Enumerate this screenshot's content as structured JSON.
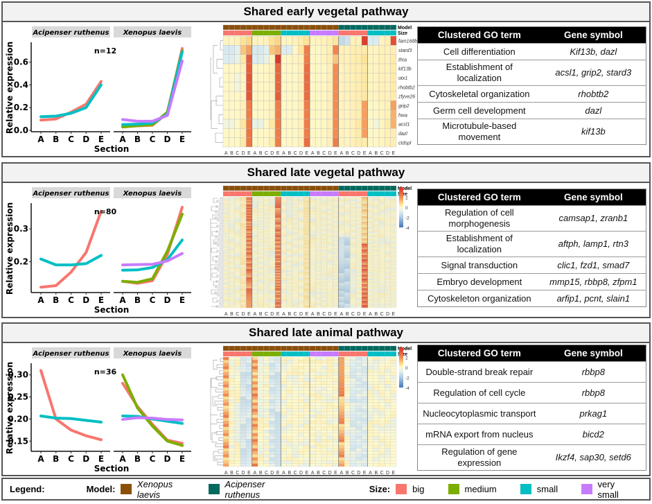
{
  "legend": {
    "title": "Legend:",
    "model_label": "Model:",
    "models": [
      {
        "name": "Xenopus laevis",
        "color": "#8B4F0A"
      },
      {
        "name": "Acipenser ruthenus",
        "color": "#006A5E"
      }
    ],
    "size_label": "Size:",
    "sizes": [
      {
        "name": "big",
        "color": "#F8766D"
      },
      {
        "name": "medium",
        "color": "#7CAE00"
      },
      {
        "name": "small",
        "color": "#00BFC4"
      },
      {
        "name": "very small",
        "color": "#C77CFF"
      }
    ]
  },
  "table_headers": {
    "go": "Clustered GO term",
    "gene": "Gene symbol"
  },
  "chart_data": [
    {
      "type": "line",
      "panel": "Shared early vegetal pathway",
      "title": "Shared early vegetal pathway",
      "n_label": "n=12",
      "facets": [
        "Acipenser ruthenus",
        "Xenopus laevis"
      ],
      "x": [
        "A",
        "B",
        "C",
        "D",
        "E"
      ],
      "xlabel": "Section",
      "ylabel": "Relative expression",
      "ylim": [
        0,
        0.75
      ],
      "yticks": [
        0.0,
        0.2,
        0.4,
        0.6
      ],
      "ytick_labels": [
        "0.0",
        "0.2",
        "0.4",
        "0.6"
      ],
      "series": {
        "Acipenser ruthenus": [
          {
            "name": "big",
            "values": [
              0.09,
              0.1,
              0.16,
              0.23,
              0.43
            ]
          },
          {
            "name": "small",
            "values": [
              0.12,
              0.125,
              0.15,
              0.2,
              0.4
            ]
          }
        ],
        "Xenopus laevis": [
          {
            "name": "big",
            "values": [
              0.03,
              0.04,
              0.045,
              0.15,
              0.72
            ]
          },
          {
            "name": "medium",
            "values": [
              0.03,
              0.04,
              0.05,
              0.16,
              0.7
            ]
          },
          {
            "name": "small",
            "values": [
              0.05,
              0.055,
              0.065,
              0.14,
              0.69
            ]
          },
          {
            "name": "very small",
            "values": [
              0.095,
              0.08,
              0.08,
              0.13,
              0.61
            ]
          }
        ]
      },
      "heatmap": {
        "scale_ticks": [
          "3",
          "2",
          "1",
          "0",
          "-1",
          "-2",
          "-3"
        ],
        "vmin": -3,
        "vmax": 3,
        "annotation_labels": [
          "Model",
          "Size"
        ],
        "column_groups": [
          {
            "model": "Xenopus laevis",
            "size": "big"
          },
          {
            "model": "Xenopus laevis",
            "size": "medium"
          },
          {
            "model": "Xenopus laevis",
            "size": "small"
          },
          {
            "model": "Xenopus laevis",
            "size": "very small"
          },
          {
            "model": "Acipenser ruthenus",
            "size": "big"
          },
          {
            "model": "Acipenser ruthenus",
            "size": "small"
          }
        ],
        "col_labels": [
          "A",
          "B",
          "C",
          "D",
          "E"
        ],
        "row_labels": [
          "fam168b",
          "stard3",
          "thra",
          "kif13b",
          "otx1",
          "rhobtb2",
          "zfyve26",
          "grip2",
          "hwa",
          "acsl1",
          "dazl",
          "ctdspl"
        ],
        "values": [
          [
            0.2,
            0.2,
            0.3,
            0.8,
            1.0,
            0.2,
            0.2,
            0.3,
            0.8,
            1.0,
            0.2,
            0.2,
            0.3,
            0.5,
            0.8,
            0.2,
            0.2,
            0.3,
            0.4,
            0.7,
            -1.0,
            -0.8,
            0.3,
            0.3,
            2.8,
            -0.5,
            -0.5,
            0.2,
            0.4,
            2.6
          ],
          [
            -0.6,
            -0.6,
            -0.4,
            1.2,
            1.6,
            -0.6,
            -0.6,
            -0.4,
            1.2,
            1.4,
            -0.5,
            -0.5,
            0.1,
            0.7,
            2.0,
            0.1,
            0.1,
            0.2,
            0.4,
            1.9,
            0.3,
            0.3,
            0.4,
            0.4,
            0.5,
            0.2,
            0.2,
            0.3,
            0.3,
            0.4
          ],
          [
            -0.5,
            -0.5,
            -0.3,
            0.6,
            2.4,
            -0.5,
            -0.5,
            -0.3,
            0.2,
            2.9,
            0.1,
            0.1,
            0.2,
            0.3,
            2.0,
            0.1,
            0.1,
            0.2,
            0.4,
            1.2,
            0.3,
            0.3,
            0.4,
            0.5,
            0.8,
            0.2,
            0.2,
            0.3,
            0.3,
            0.5
          ],
          [
            0.1,
            0.1,
            0.1,
            0.3,
            2.4,
            0.1,
            0.1,
            0.1,
            0.3,
            2.3,
            0.1,
            0.1,
            0.1,
            0.3,
            2.2,
            0.1,
            0.1,
            0.1,
            0.3,
            1.8,
            0.2,
            0.3,
            0.4,
            0.4,
            0.6,
            0.2,
            0.2,
            0.3,
            0.3,
            0.5
          ],
          [
            0.1,
            0.1,
            -0.2,
            0.2,
            2.5,
            0.1,
            0.1,
            0.1,
            0.3,
            2.3,
            0.1,
            0.1,
            0.1,
            0.3,
            2.2,
            0.1,
            0.1,
            0.1,
            0.3,
            1.8,
            0.2,
            0.3,
            0.3,
            0.4,
            0.6,
            0.2,
            0.2,
            0.3,
            0.3,
            0.5
          ],
          [
            0.1,
            0.1,
            -0.2,
            0.2,
            2.5,
            0.1,
            0.1,
            0.1,
            0.2,
            2.3,
            0.1,
            0.1,
            0.1,
            0.3,
            2.2,
            0.1,
            0.1,
            0.1,
            0.3,
            1.8,
            0.2,
            0.3,
            0.3,
            0.4,
            0.6,
            0.2,
            0.2,
            0.3,
            0.3,
            0.5
          ],
          [
            0.1,
            0.1,
            0.1,
            0.2,
            2.5,
            0.1,
            0.1,
            0.1,
            0.2,
            2.4,
            0.1,
            0.1,
            0.1,
            0.3,
            2.2,
            0.1,
            0.1,
            0.1,
            0.3,
            1.8,
            0.2,
            0.3,
            0.3,
            0.4,
            0.6,
            0.2,
            0.2,
            0.3,
            0.3,
            0.5
          ],
          [
            0.1,
            0.1,
            0.1,
            0.3,
            2.0,
            0.1,
            0.1,
            0.1,
            0.3,
            2.0,
            0.1,
            0.1,
            0.1,
            0.3,
            2.0,
            0.1,
            0.1,
            0.1,
            0.3,
            1.8,
            0.2,
            0.2,
            0.3,
            0.4,
            1.6,
            0.1,
            0.1,
            0.2,
            0.3,
            1.6
          ],
          [
            0.1,
            0.1,
            0.1,
            0.3,
            2.0,
            0.1,
            0.1,
            0.1,
            0.3,
            2.0,
            0.1,
            0.1,
            0.1,
            0.3,
            2.0,
            0.1,
            0.1,
            0.1,
            0.3,
            1.8,
            0.2,
            0.2,
            0.3,
            0.4,
            1.6,
            0.1,
            0.1,
            0.2,
            0.3,
            1.4
          ],
          [
            -0.2,
            -0.2,
            0.1,
            0.7,
            2.0,
            -0.3,
            -0.3,
            0.1,
            0.6,
            2.0,
            0.1,
            0.1,
            0.1,
            0.3,
            2.0,
            0.1,
            0.1,
            0.1,
            0.3,
            1.8,
            0.2,
            0.2,
            0.3,
            0.6,
            1.6,
            0.1,
            -0.2,
            0.2,
            0.5,
            1.4
          ],
          [
            0.1,
            0.1,
            0.1,
            0.4,
            2.1,
            0.1,
            0.1,
            0.1,
            0.3,
            2.0,
            0.1,
            0.1,
            0.1,
            0.3,
            2.0,
            0.1,
            0.1,
            0.1,
            0.3,
            1.8,
            0.2,
            0.2,
            0.3,
            0.5,
            1.6,
            0.1,
            0.1,
            0.2,
            0.3,
            0.4
          ],
          [
            0.1,
            0.1,
            0.1,
            0.6,
            2.1,
            0.1,
            0.1,
            0.1,
            0.5,
            2.0,
            0.1,
            0.1,
            0.1,
            0.3,
            2.2,
            0.1,
            0.1,
            0.1,
            0.3,
            2.0,
            0.2,
            0.2,
            0.3,
            0.4,
            0.5,
            0.1,
            0.1,
            0.2,
            0.3,
            0.4
          ]
        ]
      },
      "go_table": [
        {
          "term": "Cell differentiation",
          "genes": "Kif13b, dazl"
        },
        {
          "term": "Establishment of localization",
          "genes": "acsl1, grip2, stard3"
        },
        {
          "term": "Cytoskeletal organization",
          "genes": "rhobtb2"
        },
        {
          "term": "Germ cell development",
          "genes": "dazl"
        },
        {
          "term": "Microtubule-based movement",
          "genes": "kif13b"
        }
      ]
    },
    {
      "type": "line",
      "panel": "Shared late vegetal pathway",
      "title": "Shared late vegetal pathway",
      "n_label": "n=80",
      "facets": [
        "Acipenser ruthenus",
        "Xenopus laevis"
      ],
      "x": [
        "A",
        "B",
        "C",
        "D",
        "E"
      ],
      "xlabel": "Section",
      "ylabel": "Relative expression",
      "ylim": [
        0.11,
        0.37
      ],
      "yticks": [
        0.2,
        0.3
      ],
      "ytick_labels": [
        "0.2",
        "0.3"
      ],
      "series": {
        "Acipenser ruthenus": [
          {
            "name": "big",
            "values": [
              0.122,
              0.127,
              0.168,
              0.228,
              0.354
            ]
          },
          {
            "name": "small",
            "values": [
              0.208,
              0.19,
              0.19,
              0.194,
              0.219
            ]
          }
        ],
        "Xenopus laevis": [
          {
            "name": "big",
            "values": [
              0.14,
              0.134,
              0.142,
              0.222,
              0.366
            ]
          },
          {
            "name": "medium",
            "values": [
              0.14,
              0.137,
              0.148,
              0.232,
              0.345
            ]
          },
          {
            "name": "small",
            "values": [
              0.174,
              0.175,
              0.182,
              0.206,
              0.266
            ]
          },
          {
            "name": "very small",
            "values": [
              0.19,
              0.191,
              0.192,
              0.202,
              0.225
            ]
          }
        ]
      },
      "heatmap": {
        "scale_ticks": [
          "4",
          "2",
          "0",
          "-2",
          "-4"
        ],
        "vmin": -4,
        "vmax": 4,
        "annotation_labels": [
          "Model",
          "Size"
        ],
        "column_groups": [
          {
            "model": "Xenopus laevis",
            "size": "big"
          },
          {
            "model": "Xenopus laevis",
            "size": "medium"
          },
          {
            "model": "Xenopus laevis",
            "size": "small"
          },
          {
            "model": "Xenopus laevis",
            "size": "very small"
          },
          {
            "model": "Acipenser ruthenus",
            "size": "big"
          },
          {
            "model": "Acipenser ruthenus",
            "size": "small"
          }
        ],
        "col_labels": [
          "A",
          "B",
          "C",
          "D",
          "E"
        ],
        "n_rows": 80,
        "pattern": "high values at column E of Xenopus big/medium and Acipenser big; low values at columns A-B of Acipenser big"
      },
      "go_table": [
        {
          "term": "Regulation of cell morphogenesis",
          "genes": "camsap1, zranb1"
        },
        {
          "term": "Establishment of localization",
          "genes": "aftph, lamp1, rtn3"
        },
        {
          "term": "Signal transduction",
          "genes": "clic1, fzd1, smad7"
        },
        {
          "term": "Embryo development",
          "genes": "mmp15, rbbp8, zfpm1"
        },
        {
          "term": "Cytoskeleton organization",
          "genes": "arfip1, pcnt, slain1"
        }
      ]
    },
    {
      "type": "line",
      "panel": "Shared late animal pathway",
      "title": "Shared late animal pathway",
      "n_label": "n=36",
      "facets": [
        "Acipenser ruthenus",
        "Xenopus laevis"
      ],
      "x": [
        "A",
        "B",
        "C",
        "D",
        "E"
      ],
      "xlabel": "Section",
      "ylabel": "Relative expression",
      "ylim": [
        0.13,
        0.32
      ],
      "yticks": [
        0.15,
        0.2,
        0.25,
        0.3
      ],
      "ytick_labels": [
        "0.15",
        "0.20",
        "0.25",
        "0.30"
      ],
      "series": {
        "Acipenser ruthenus": [
          {
            "name": "big",
            "values": [
              0.31,
              0.2,
              0.175,
              0.162,
              0.153
            ]
          },
          {
            "name": "small",
            "values": [
              0.207,
              0.202,
              0.201,
              0.197,
              0.193
            ]
          }
        ],
        "Xenopus laevis": [
          {
            "name": "big",
            "values": [
              0.281,
              0.228,
              0.188,
              0.152,
              0.145
            ]
          },
          {
            "name": "medium",
            "values": [
              0.3,
              0.225,
              0.184,
              0.15,
              0.14
            ]
          },
          {
            "name": "small",
            "values": [
              0.207,
              0.206,
              0.2,
              0.195,
              0.19
            ]
          },
          {
            "name": "very small",
            "values": [
              0.199,
              0.203,
              0.202,
              0.199,
              0.198
            ]
          }
        ]
      },
      "heatmap": {
        "scale_ticks": [
          "4",
          "2",
          "0",
          "-2",
          "-4"
        ],
        "vmin": -4,
        "vmax": 4,
        "annotation_labels": [
          "Model",
          "Size"
        ],
        "column_groups": [
          {
            "model": "Xenopus laevis",
            "size": "big"
          },
          {
            "model": "Xenopus laevis",
            "size": "medium"
          },
          {
            "model": "Xenopus laevis",
            "size": "small"
          },
          {
            "model": "Xenopus laevis",
            "size": "very small"
          },
          {
            "model": "Acipenser ruthenus",
            "size": "big"
          },
          {
            "model": "Acipenser ruthenus",
            "size": "small"
          }
        ],
        "col_labels": [
          "A",
          "B",
          "C",
          "D",
          "E"
        ],
        "n_rows": 36,
        "pattern": "high values at column A of Xenopus big/medium and Acipenser big; low values at columns D-E of Xenopus big/medium"
      },
      "go_table": [
        {
          "term": "Double-strand break repair",
          "genes": "rbbp8"
        },
        {
          "term": "Regulation of cell cycle",
          "genes": "rbbp8"
        },
        {
          "term": "Nucleocytoplasmic transport",
          "genes": "prkag1"
        },
        {
          "term": "mRNA export from nucleus",
          "genes": "bicd2"
        },
        {
          "term": "Regulation of gene expression",
          "genes": "Ikzf4, sap30, setd6"
        }
      ]
    }
  ]
}
